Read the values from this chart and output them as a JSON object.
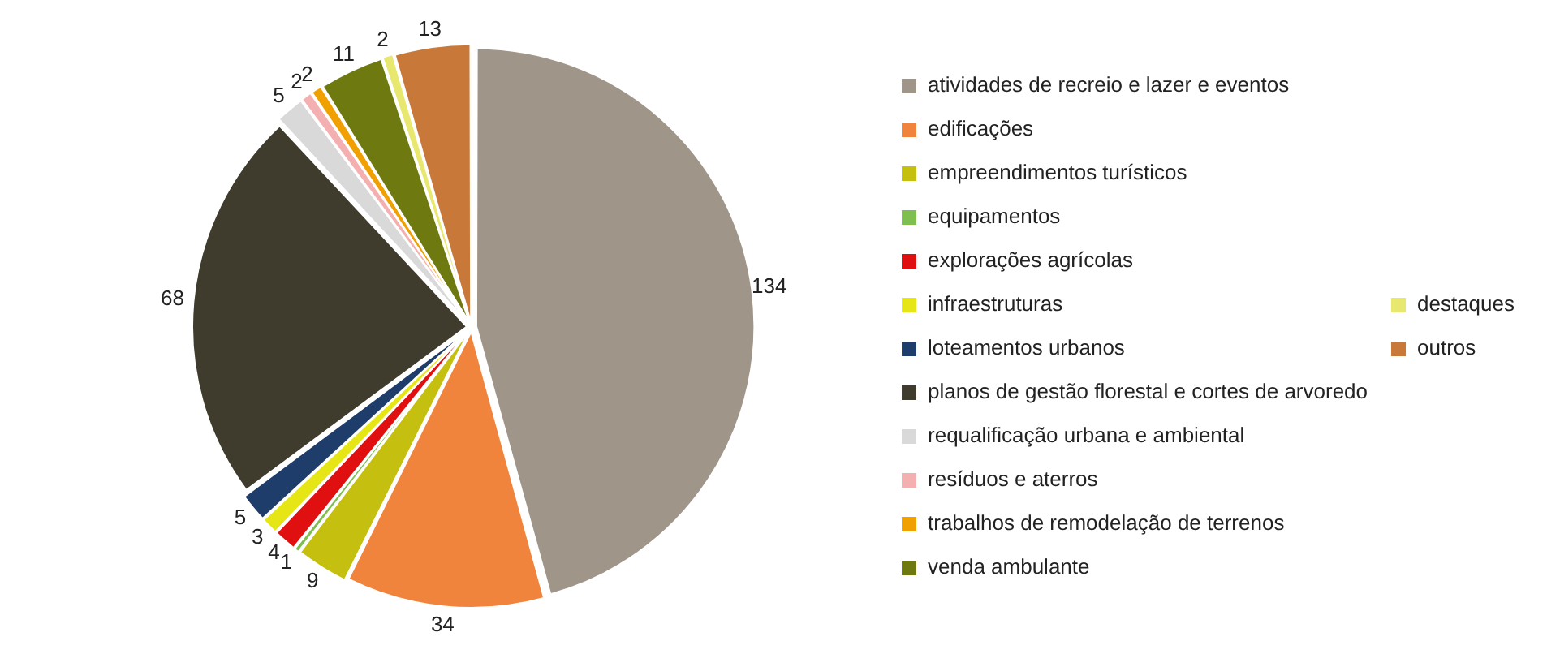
{
  "chart_data": {
    "type": "pie",
    "categories": [
      "atividades de recreio e lazer e eventos",
      "edificações",
      "empreendimentos turísticos",
      "equipamentos",
      "explorações agrícolas",
      "infraestruturas",
      "loteamentos urbanos",
      "planos de gestão florestal e cortes de arvoredo",
      "requalificação urbana e ambiental",
      "resíduos e aterros",
      "trabalhos de remodelação de terrenos",
      "venda ambulante",
      "destaques",
      "outros"
    ],
    "values": [
      134,
      34,
      9,
      1,
      4,
      3,
      5,
      68,
      5,
      2,
      2,
      11,
      2,
      13
    ],
    "colors": [
      "#a09589",
      "#f0843c",
      "#c5c010",
      "#7fbf50",
      "#e01010",
      "#e6e617",
      "#1f3d6a",
      "#3f3b2d",
      "#d9d9d9",
      "#f4b0b0",
      "#f0a000",
      "#6e7a10",
      "#e8e870",
      "#c8793a"
    ],
    "data_labels": true,
    "legend": "right"
  }
}
